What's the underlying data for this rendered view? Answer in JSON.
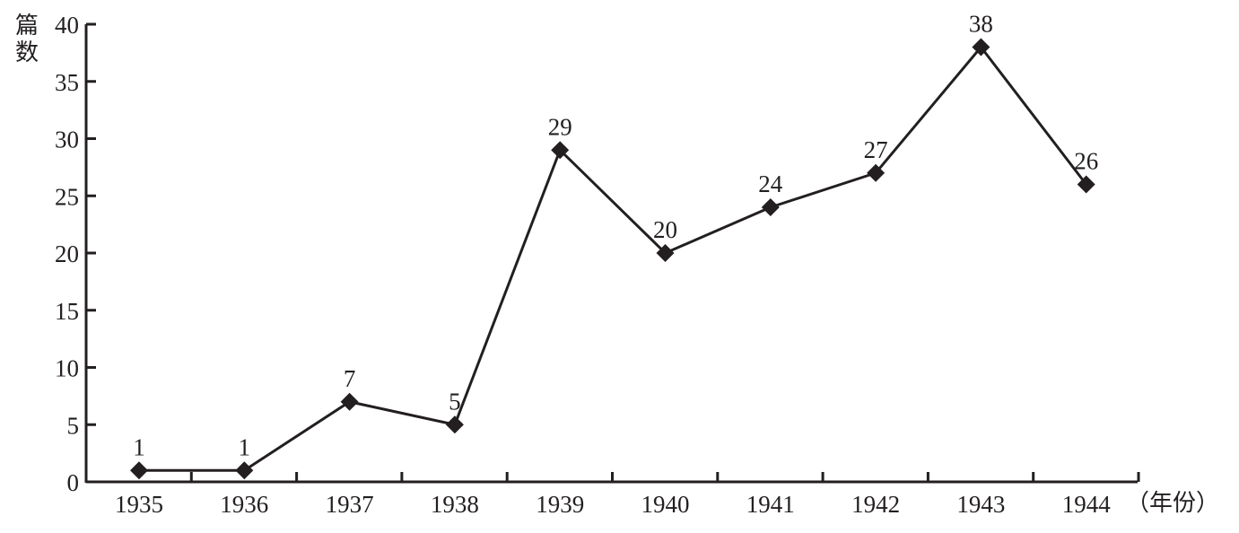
{
  "chart_data": {
    "type": "line",
    "title": "",
    "xlabel": "（年份）",
    "ylabel": "篇数",
    "categories": [
      "1935",
      "1936",
      "1937",
      "1938",
      "1939",
      "1940",
      "1941",
      "1942",
      "1943",
      "1944"
    ],
    "series": [
      {
        "values": [
          1,
          1,
          7,
          5,
          29,
          20,
          24,
          27,
          38,
          26
        ],
        "data_labels": [
          "1",
          "1",
          "7",
          "5",
          "29",
          "20",
          "24",
          "27",
          "38",
          "26"
        ],
        "marker": "diamond",
        "color": "#231f20"
      }
    ],
    "ylim": [
      0,
      40
    ],
    "yticks": [
      0,
      5,
      10,
      15,
      20,
      25,
      30,
      35,
      40
    ],
    "ytick_labels": [
      "0",
      "5",
      "10",
      "15",
      "20",
      "25",
      "30",
      "35",
      "40"
    ],
    "grid": false,
    "legend": "none"
  }
}
